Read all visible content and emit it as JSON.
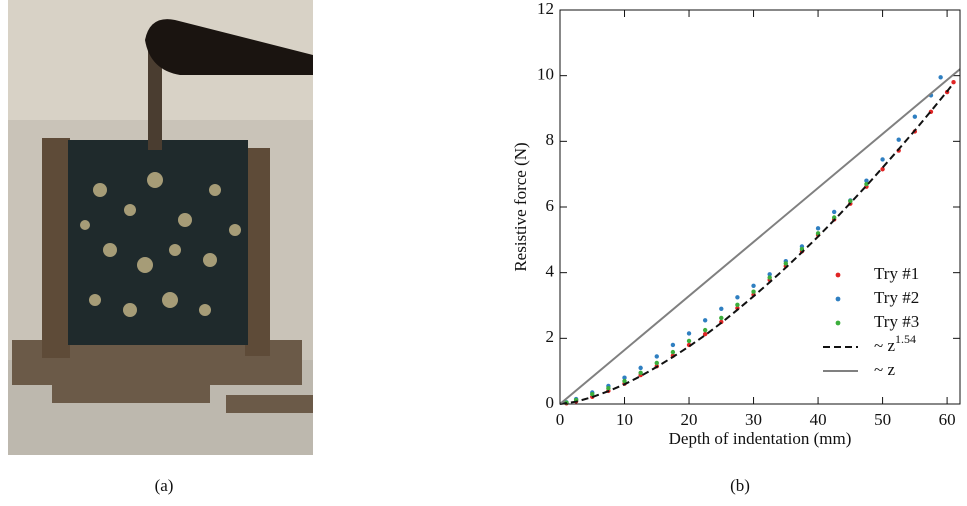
{
  "panel_labels": [
    "(a)",
    "(b)"
  ],
  "chart_data": {
    "type": "scatter",
    "x_label": "Depth of indentation (mm)",
    "y_label": "Resistive force (N)",
    "xlim": [
      0,
      62
    ],
    "ylim": [
      0,
      12
    ],
    "xticks": [
      0,
      10,
      20,
      30,
      40,
      50,
      60
    ],
    "yticks": [
      0,
      2,
      4,
      6,
      8,
      10,
      12
    ],
    "legend": "lower right",
    "series": [
      {
        "name": "Try #1",
        "color": "#e02424",
        "style": "points",
        "x": [
          1,
          2.5,
          5,
          7.5,
          10,
          12.5,
          15,
          17.5,
          20,
          22.5,
          25,
          27.5,
          30,
          32.5,
          35,
          37.5,
          40,
          42.5,
          45,
          47.5,
          50,
          52.5,
          55,
          57.5,
          60,
          61
        ],
        "values": [
          0.02,
          0.08,
          0.22,
          0.4,
          0.62,
          0.88,
          1.15,
          1.47,
          1.8,
          2.13,
          2.5,
          2.92,
          3.33,
          3.78,
          4.2,
          4.65,
          5.15,
          5.62,
          6.1,
          6.62,
          7.15,
          7.72,
          8.3,
          8.9,
          9.5,
          9.8
        ]
      },
      {
        "name": "Try #2",
        "color": "#2f7fc1",
        "style": "points",
        "x": [
          1,
          2.5,
          5,
          7.5,
          10,
          12.5,
          15,
          17.5,
          20,
          22.5,
          25,
          27.5,
          30,
          32.5,
          35,
          37.5,
          40,
          42.5,
          45,
          47.5,
          50,
          52.5,
          55,
          57.5,
          59
        ],
        "values": [
          0.05,
          0.15,
          0.35,
          0.55,
          0.8,
          1.1,
          1.45,
          1.8,
          2.15,
          2.55,
          2.9,
          3.25,
          3.6,
          3.95,
          4.35,
          4.8,
          5.35,
          5.85,
          6.2,
          6.8,
          7.45,
          8.05,
          8.75,
          9.4,
          9.95
        ]
      },
      {
        "name": "Try #3",
        "color": "#3cae3c",
        "style": "points",
        "x": [
          1,
          2.5,
          5,
          7.5,
          10,
          12.5,
          15,
          17.5,
          20,
          22.5,
          25,
          27.5,
          30,
          32.5,
          35,
          37.5,
          40,
          42.5,
          45,
          47.5
        ],
        "values": [
          0.04,
          0.12,
          0.3,
          0.48,
          0.7,
          0.95,
          1.25,
          1.58,
          1.92,
          2.25,
          2.62,
          3.02,
          3.42,
          3.85,
          4.28,
          4.72,
          5.2,
          5.68,
          6.18,
          6.7
        ]
      },
      {
        "name": "~ z",
        "name_superscript": "1.54",
        "color": "#111111",
        "style": "dashed",
        "x": [
          0,
          2.5,
          5,
          7.5,
          10,
          12.5,
          15,
          17.5,
          20,
          22.5,
          25,
          27.5,
          30,
          32.5,
          35,
          37.5,
          40,
          42.5,
          45,
          47.5,
          50,
          52.5,
          55,
          57.5,
          60,
          61
        ],
        "values": [
          0,
          0.071,
          0.21,
          0.39,
          0.6,
          0.85,
          1.13,
          1.43,
          1.75,
          2.1,
          2.47,
          2.87,
          3.28,
          3.71,
          4.15,
          4.62,
          5.1,
          5.6,
          6.12,
          6.65,
          7.2,
          7.76,
          8.33,
          8.92,
          9.52,
          9.77
        ]
      },
      {
        "name": "~ z",
        "color": "#808080",
        "style": "solid",
        "x": [
          0,
          62
        ],
        "values": [
          0,
          10.2
        ]
      }
    ]
  }
}
